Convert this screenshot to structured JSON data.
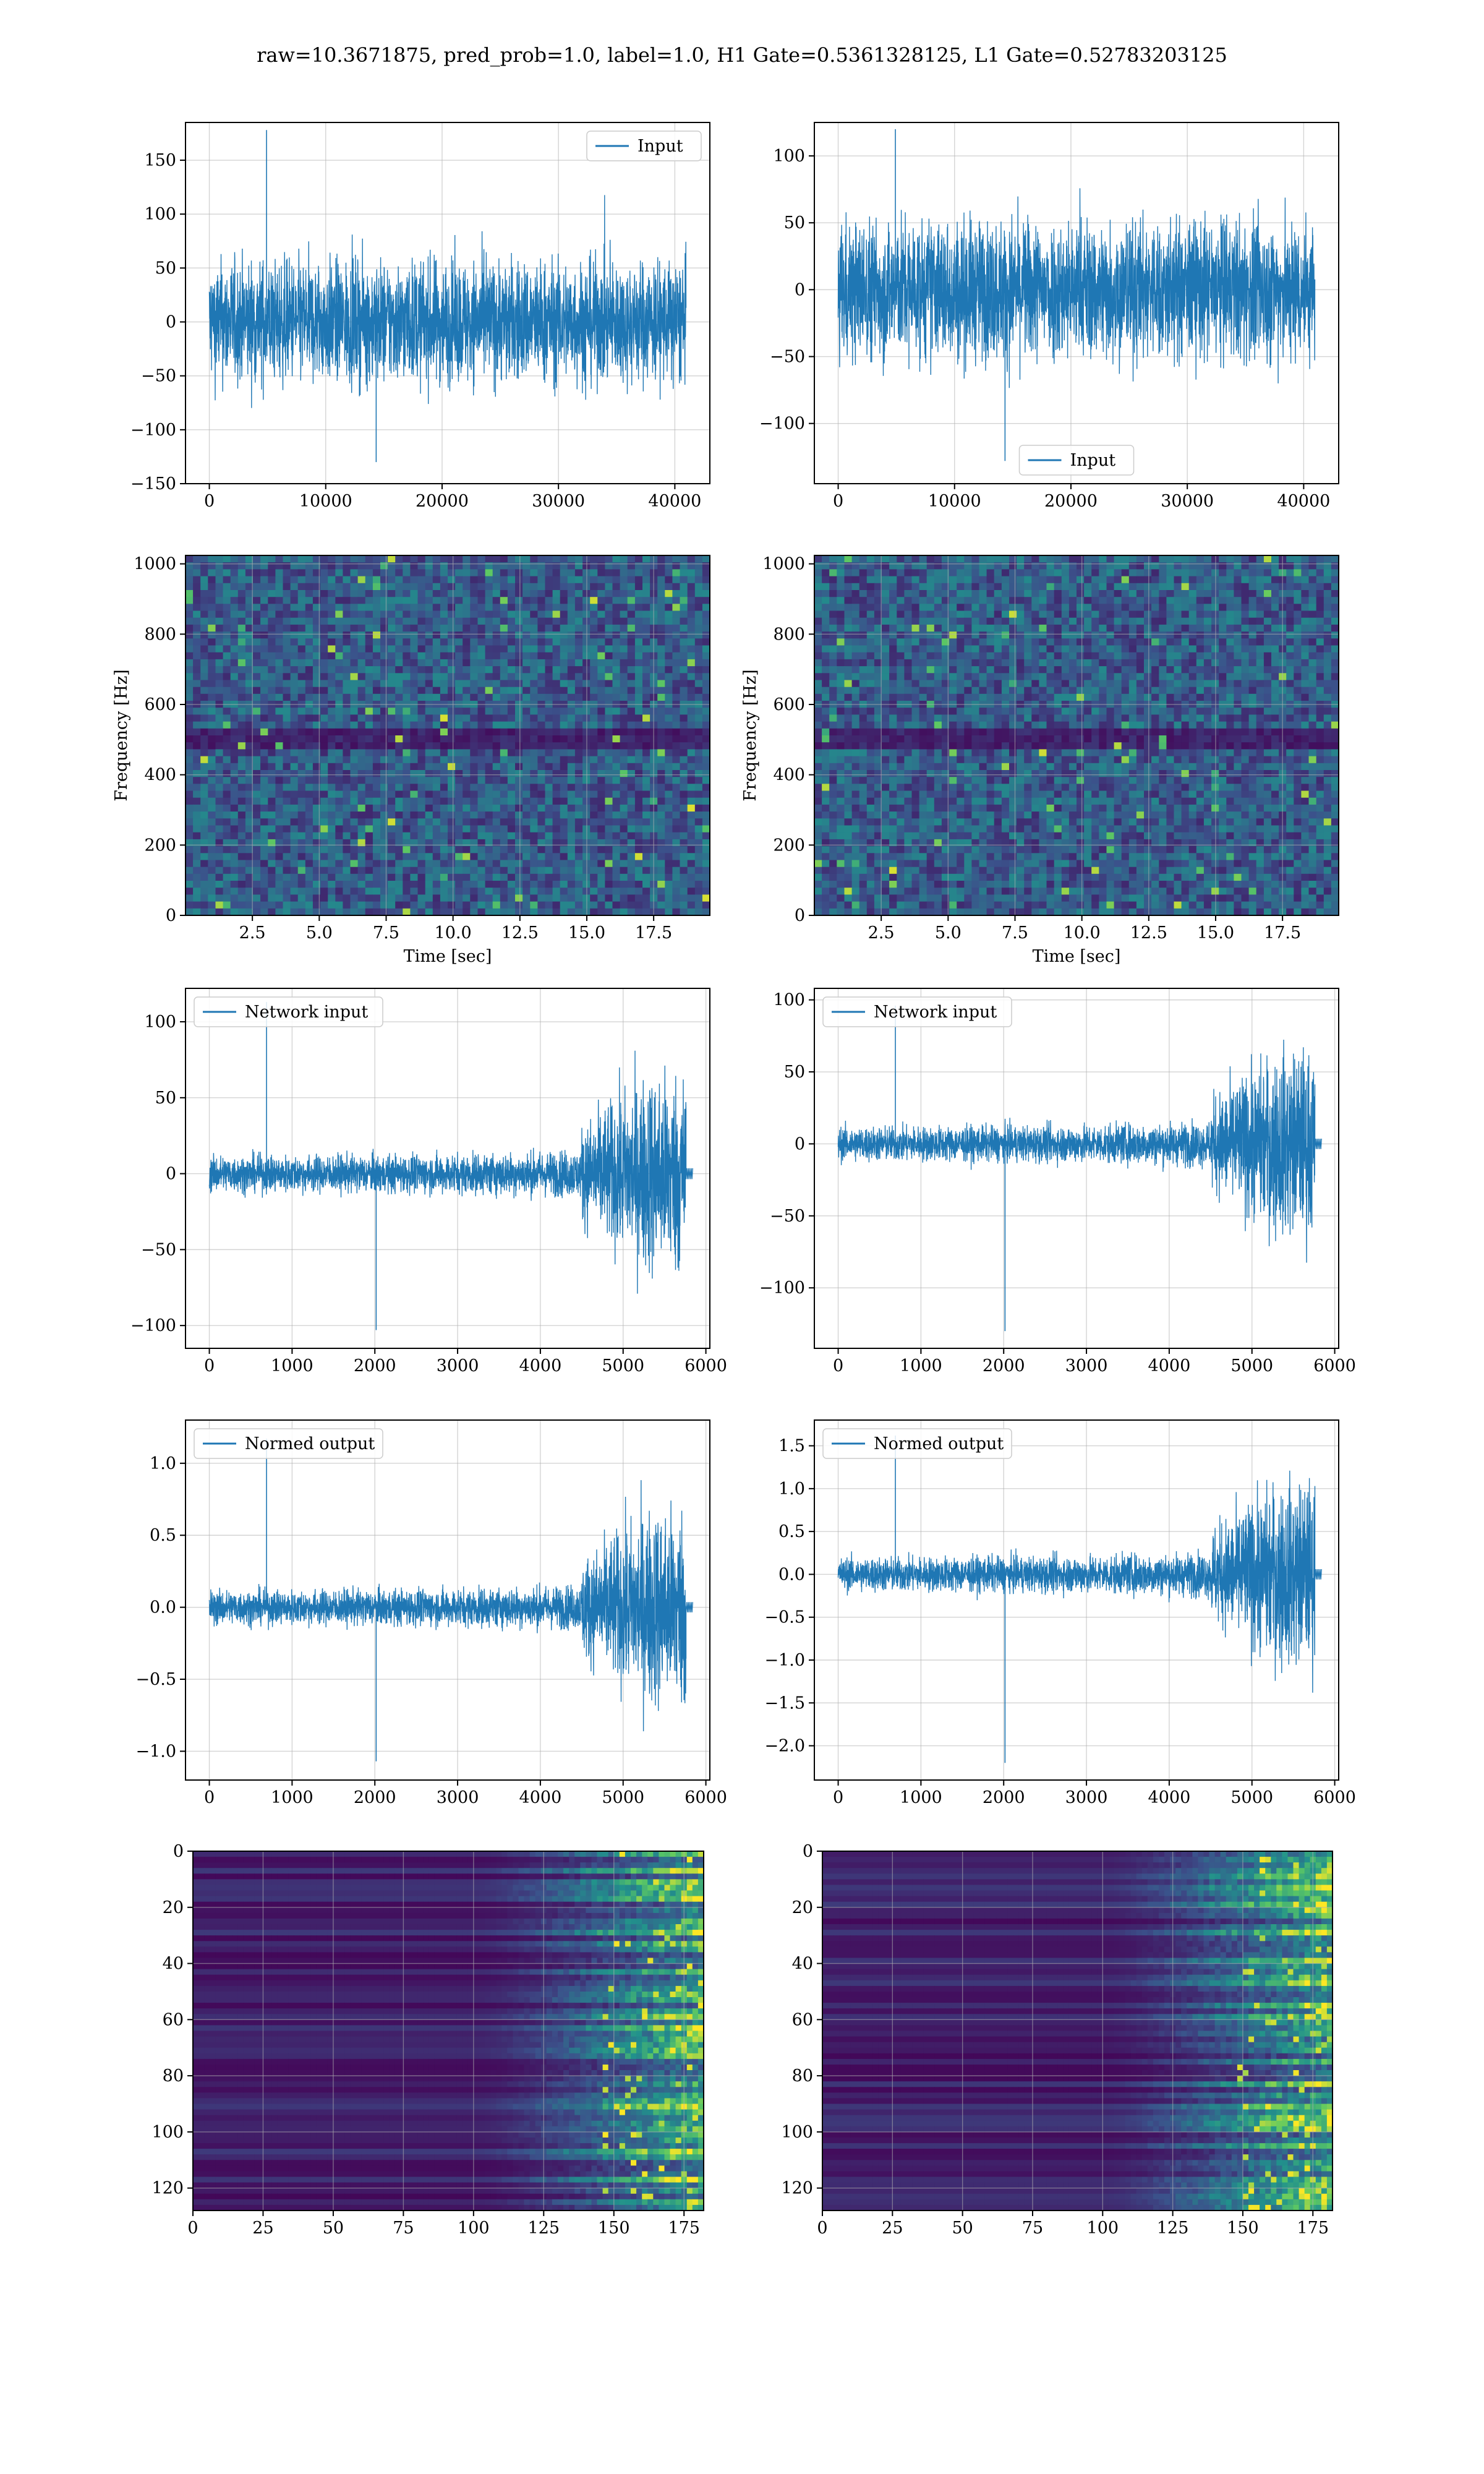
{
  "figure": {
    "suptitle": "raw=10.3671875, pred_prob=1.0, label=1.0, H1 Gate=0.5361328125, L1 Gate=0.52783203125",
    "colors": {
      "line": "#1f77b4",
      "grid": "#b0b0b0",
      "axes": "#000000",
      "map_low": "#440154",
      "map_high": "#fde725"
    }
  },
  "chart_data": [
    {
      "id": "r1l",
      "type": "line",
      "legend": "Input",
      "legend_loc": "upper right",
      "xlim": [
        -2048,
        43008
      ],
      "ylim": [
        -150,
        185
      ],
      "xticks": [
        0,
        10000,
        20000,
        30000,
        40000
      ],
      "xtick_labels": [
        "0",
        "10000",
        "20000",
        "30000",
        "40000"
      ],
      "yticks": [
        -150,
        -100,
        -50,
        0,
        50,
        100,
        150
      ],
      "ytick_labels": [
        "−150",
        "−100",
        "−50",
        "0",
        "50",
        "100",
        "150"
      ],
      "series": [
        {
          "shape": "stationary_noise",
          "x_start": 0,
          "x_end": 40960,
          "baseline": 0,
          "std": 28,
          "min": -130,
          "max": 178
        }
      ],
      "grid": true
    },
    {
      "id": "r1r",
      "type": "line",
      "legend": "Input",
      "legend_loc": "lower center",
      "xlim": [
        -2048,
        43008
      ],
      "ylim": [
        -145,
        125
      ],
      "xticks": [
        0,
        10000,
        20000,
        30000,
        40000
      ],
      "xtick_labels": [
        "0",
        "10000",
        "20000",
        "30000",
        "40000"
      ],
      "yticks": [
        -100,
        -50,
        0,
        50,
        100
      ],
      "ytick_labels": [
        "−100",
        "−50",
        "0",
        "50",
        "100"
      ],
      "series": [
        {
          "shape": "stationary_noise",
          "x_start": 0,
          "x_end": 40960,
          "baseline": 0,
          "std": 26,
          "min": -128,
          "max": 120
        }
      ],
      "grid": true
    },
    {
      "id": "r2l",
      "type": "heatmap",
      "xlabel": "Time [sec]",
      "ylabel": "Frequency [Hz]",
      "xlim": [
        0,
        19.6
      ],
      "ylim": [
        0,
        1024
      ],
      "xticks": [
        2.5,
        5.0,
        7.5,
        10.0,
        12.5,
        15.0,
        17.5
      ],
      "xtick_labels": [
        "2.5",
        "5.0",
        "7.5",
        "10.0",
        "12.5",
        "15.0",
        "17.5"
      ],
      "yticks": [
        0,
        200,
        400,
        600,
        800,
        1000
      ],
      "ytick_labels": [
        "0",
        "200",
        "400",
        "600",
        "800",
        "1000"
      ],
      "colormap": "viridis",
      "grid": true
    },
    {
      "id": "r2r",
      "type": "heatmap",
      "xlabel": "Time [sec]",
      "ylabel": "Frequency [Hz]",
      "xlim": [
        0,
        19.6
      ],
      "ylim": [
        0,
        1024
      ],
      "xticks": [
        2.5,
        5.0,
        7.5,
        10.0,
        12.5,
        15.0,
        17.5
      ],
      "xtick_labels": [
        "2.5",
        "5.0",
        "7.5",
        "10.0",
        "12.5",
        "15.0",
        "17.5"
      ],
      "yticks": [
        0,
        200,
        400,
        600,
        800,
        1000
      ],
      "ytick_labels": [
        "0",
        "200",
        "400",
        "600",
        "800",
        "1000"
      ],
      "colormap": "viridis",
      "grid": true
    },
    {
      "id": "r3l",
      "type": "line",
      "legend": "Network input",
      "legend_loc": "upper left",
      "xlim": [
        -288,
        6048
      ],
      "ylim": [
        -115,
        122
      ],
      "xticks": [
        0,
        1000,
        2000,
        3000,
        4000,
        5000,
        6000
      ],
      "xtick_labels": [
        "0",
        "1000",
        "2000",
        "3000",
        "4000",
        "5000",
        "6000"
      ],
      "yticks": [
        -100,
        -50,
        0,
        50,
        100
      ],
      "ytick_labels": [
        "−100",
        "−50",
        "0",
        "50",
        "100"
      ],
      "series": [
        {
          "shape": "growing_burst",
          "x_start": 0,
          "x_end": 5760,
          "baseline": 0,
          "noise_amp": 12,
          "burst_start": 4500,
          "burst_amp": 95,
          "min": -103,
          "max": 113
        }
      ],
      "grid": true
    },
    {
      "id": "r3r",
      "type": "line",
      "legend": "Network input",
      "legend_loc": "upper left",
      "xlim": [
        -288,
        6048
      ],
      "ylim": [
        -142,
        108
      ],
      "xticks": [
        0,
        1000,
        2000,
        3000,
        4000,
        5000,
        6000
      ],
      "xtick_labels": [
        "0",
        "1000",
        "2000",
        "3000",
        "4000",
        "5000",
        "6000"
      ],
      "yticks": [
        -100,
        -50,
        0,
        50,
        100
      ],
      "ytick_labels": [
        "−100",
        "−50",
        "0",
        "50",
        "100"
      ],
      "series": [
        {
          "shape": "growing_burst",
          "x_start": 0,
          "x_end": 5760,
          "baseline": 0,
          "noise_amp": 12,
          "burst_start": 4500,
          "burst_amp": 90,
          "min": -130,
          "max": 96
        }
      ],
      "grid": true
    },
    {
      "id": "r4l",
      "type": "line",
      "legend": "Normed output",
      "legend_loc": "upper left",
      "xlim": [
        -288,
        6048
      ],
      "ylim": [
        -1.2,
        1.3
      ],
      "xticks": [
        0,
        1000,
        2000,
        3000,
        4000,
        5000,
        6000
      ],
      "xtick_labels": [
        "0",
        "1000",
        "2000",
        "3000",
        "4000",
        "5000",
        "6000"
      ],
      "yticks": [
        -1.0,
        -0.5,
        0.0,
        0.5,
        1.0
      ],
      "ytick_labels": [
        "−1.0",
        "−0.5",
        "0.0",
        "0.5",
        "1.0"
      ],
      "series": [
        {
          "shape": "growing_burst",
          "x_start": 0,
          "x_end": 5760,
          "baseline": 0,
          "noise_amp": 0.12,
          "burst_start": 4500,
          "burst_amp": 1.0,
          "min": -1.07,
          "max": 1.17
        }
      ],
      "grid": true
    },
    {
      "id": "r4r",
      "type": "line",
      "legend": "Normed output",
      "legend_loc": "upper left",
      "xlim": [
        -288,
        6048
      ],
      "ylim": [
        -2.4,
        1.8
      ],
      "xticks": [
        0,
        1000,
        2000,
        3000,
        4000,
        5000,
        6000
      ],
      "xtick_labels": [
        "0",
        "1000",
        "2000",
        "3000",
        "4000",
        "5000",
        "6000"
      ],
      "yticks": [
        -2.0,
        -1.5,
        -1.0,
        -0.5,
        0.0,
        0.5,
        1.0,
        1.5
      ],
      "ytick_labels": [
        "−2.0",
        "−1.5",
        "−1.0",
        "−0.5",
        "0.0",
        "0.5",
        "1.0",
        "1.5"
      ],
      "series": [
        {
          "shape": "growing_burst",
          "x_start": 0,
          "x_end": 5760,
          "baseline": 0,
          "noise_amp": 0.2,
          "burst_start": 4500,
          "burst_amp": 1.5,
          "min": -2.2,
          "max": 1.62
        }
      ],
      "grid": true
    },
    {
      "id": "r5l",
      "type": "heatmap",
      "xlim": [
        0,
        182
      ],
      "ylim": [
        128,
        0
      ],
      "xticks": [
        0,
        25,
        50,
        75,
        100,
        125,
        150,
        175
      ],
      "xtick_labels": [
        "0",
        "25",
        "50",
        "75",
        "100",
        "125",
        "150",
        "175"
      ],
      "yticks": [
        0,
        20,
        40,
        60,
        80,
        100,
        120
      ],
      "ytick_labels": [
        "0",
        "20",
        "40",
        "60",
        "80",
        "100",
        "120"
      ],
      "colormap": "viridis",
      "grid": true
    },
    {
      "id": "r5r",
      "type": "heatmap",
      "xlim": [
        0,
        182
      ],
      "ylim": [
        128,
        0
      ],
      "xticks": [
        0,
        25,
        50,
        75,
        100,
        125,
        150,
        175
      ],
      "xtick_labels": [
        "0",
        "25",
        "50",
        "75",
        "100",
        "125",
        "150",
        "175"
      ],
      "yticks": [
        0,
        20,
        40,
        60,
        80,
        100,
        120
      ],
      "ytick_labels": [
        "0",
        "20",
        "40",
        "60",
        "80",
        "100",
        "120"
      ],
      "colormap": "viridis",
      "grid": true
    }
  ]
}
